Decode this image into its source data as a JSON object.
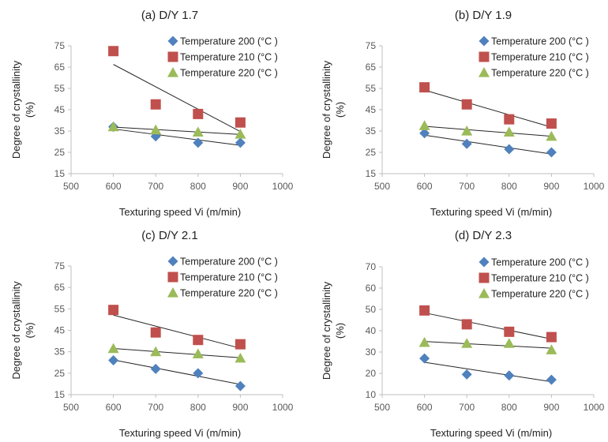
{
  "legend": [
    {
      "label": "Temperature 200 (°C )",
      "color": "#4f81bd",
      "marker": "diamond"
    },
    {
      "label": "Temperature 210 (°C )",
      "color": "#c0504d",
      "marker": "square"
    },
    {
      "label": "Temperature 220 (°C )",
      "color": "#9bbb59",
      "marker": "triangle"
    }
  ],
  "chart_data": [
    {
      "type": "scatter",
      "title": "(a) D/Y 1.7",
      "xlabel": "Texturing speed Vi (m/min)",
      "ylabel": [
        "Degree of crystallinity",
        "(%)"
      ],
      "xlim": [
        500,
        1000
      ],
      "ylim": [
        15,
        75
      ],
      "xticks": [
        "500",
        "600",
        "700",
        "800",
        "900",
        "1000"
      ],
      "yticks": [
        "15",
        "25",
        "35",
        "45",
        "55",
        "65",
        "75"
      ],
      "trendlines": true,
      "legend_position": "right",
      "grid": false,
      "series": [
        {
          "name": "Temperature 200 (°C )",
          "x": [
            600,
            700,
            800,
            900
          ],
          "y": [
            37,
            32.5,
            29.5,
            29.5
          ]
        },
        {
          "name": "Temperature 210 (°C )",
          "x": [
            600,
            700,
            800,
            900
          ],
          "y": [
            72.5,
            47.5,
            43,
            39
          ]
        },
        {
          "name": "Temperature 220 (°C )",
          "x": [
            600,
            700,
            800,
            900
          ],
          "y": [
            37,
            35.5,
            34.5,
            33.5
          ]
        }
      ]
    },
    {
      "type": "scatter",
      "title": "(b) D/Y 1.9",
      "xlabel": "Texturing speed Vi (m/min)",
      "ylabel": [
        "Degree of crystallinity",
        "(%)"
      ],
      "xlim": [
        500,
        1000
      ],
      "ylim": [
        15,
        75
      ],
      "xticks": [
        "500",
        "600",
        "700",
        "800",
        "900",
        "1000"
      ],
      "yticks": [
        "15",
        "25",
        "35",
        "45",
        "55",
        "65",
        "75"
      ],
      "trendlines": true,
      "legend_position": "right",
      "grid": false,
      "series": [
        {
          "name": "Temperature 200 (°C )",
          "x": [
            600,
            700,
            800,
            900
          ],
          "y": [
            34,
            29,
            26.5,
            25
          ]
        },
        {
          "name": "Temperature 210 (°C )",
          "x": [
            600,
            700,
            800,
            900
          ],
          "y": [
            55.5,
            47.5,
            40.5,
            38.5
          ]
        },
        {
          "name": "Temperature 220 (°C )",
          "x": [
            600,
            700,
            800,
            900
          ],
          "y": [
            37.5,
            35,
            34.5,
            32.5
          ]
        }
      ]
    },
    {
      "type": "scatter",
      "title": "(c) D/Y 2.1",
      "xlabel": "Texturing speed Vi (m/min)",
      "ylabel": [
        "Degree of crystallinity",
        "(%)"
      ],
      "xlim": [
        500,
        1000
      ],
      "ylim": [
        15,
        75
      ],
      "xticks": [
        "500",
        "600",
        "700",
        "800",
        "900",
        "1000"
      ],
      "yticks": [
        "15",
        "25",
        "35",
        "45",
        "55",
        "65",
        "75"
      ],
      "trendlines": true,
      "legend_position": "right",
      "grid": false,
      "series": [
        {
          "name": "Temperature 200 (°C )",
          "x": [
            600,
            700,
            800,
            900
          ],
          "y": [
            31,
            27,
            25,
            19
          ]
        },
        {
          "name": "Temperature 210 (°C )",
          "x": [
            600,
            700,
            800,
            900
          ],
          "y": [
            54.5,
            44,
            40.5,
            38.5
          ]
        },
        {
          "name": "Temperature 220 (°C )",
          "x": [
            600,
            700,
            800,
            900
          ],
          "y": [
            36.5,
            35,
            34,
            32
          ]
        }
      ]
    },
    {
      "type": "scatter",
      "title": "(d) D/Y 2.3",
      "xlabel": "Texturing speed Vi (m/min)",
      "ylabel": [
        "Degree of crystallinity",
        "(%)"
      ],
      "xlim": [
        500,
        1000
      ],
      "ylim": [
        10,
        70
      ],
      "xticks": [
        "500",
        "600",
        "700",
        "800",
        "900",
        "1000"
      ],
      "yticks": [
        "10",
        "20",
        "30",
        "40",
        "50",
        "60",
        "70"
      ],
      "trendlines": true,
      "legend_position": "right",
      "grid": false,
      "series": [
        {
          "name": "Temperature 200 (°C )",
          "x": [
            600,
            700,
            800,
            900
          ],
          "y": [
            27,
            19.5,
            19,
            17
          ]
        },
        {
          "name": "Temperature 210 (°C )",
          "x": [
            600,
            700,
            800,
            900
          ],
          "y": [
            49.5,
            43,
            39.5,
            37
          ]
        },
        {
          "name": "Temperature 220 (°C )",
          "x": [
            600,
            700,
            800,
            900
          ],
          "y": [
            34.5,
            34,
            34,
            31
          ]
        }
      ]
    }
  ]
}
